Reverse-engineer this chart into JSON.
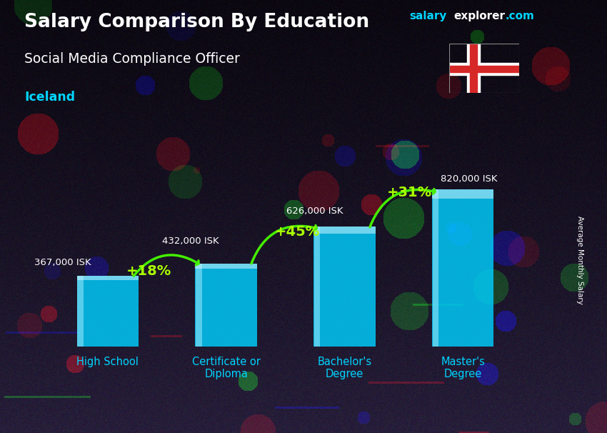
{
  "title": "Salary Comparison By Education",
  "subtitle": "Social Media Compliance Officer",
  "country": "Iceland",
  "ylabel": "Average Monthly Salary",
  "categories": [
    "High School",
    "Certificate or\nDiploma",
    "Bachelor's\nDegree",
    "Master's\nDegree"
  ],
  "values": [
    367000,
    432000,
    626000,
    820000
  ],
  "value_labels": [
    "367,000 ISK",
    "432,000 ISK",
    "626,000 ISK",
    "820,000 ISK"
  ],
  "pct_changes": [
    "+18%",
    "+45%",
    "+31%"
  ],
  "bar_color": "#00cfff",
  "bar_alpha": 0.82,
  "bar_edge_color": "#55eeff",
  "title_color": "#ffffff",
  "subtitle_color": "#ffffff",
  "country_color": "#00d4ff",
  "xlabel_color": "#00d4ff",
  "label_color": "#ffffff",
  "pct_color": "#aaff00",
  "arrow_color": "#44ee00",
  "brand_salary_color": "#00d4ff",
  "brand_explorer_color": "#ffffff",
  "brand_com_color": "#00d4ff",
  "ylim": [
    0,
    950000
  ],
  "bar_width": 0.52,
  "figsize": [
    8.5,
    6.06
  ],
  "dpi": 100
}
